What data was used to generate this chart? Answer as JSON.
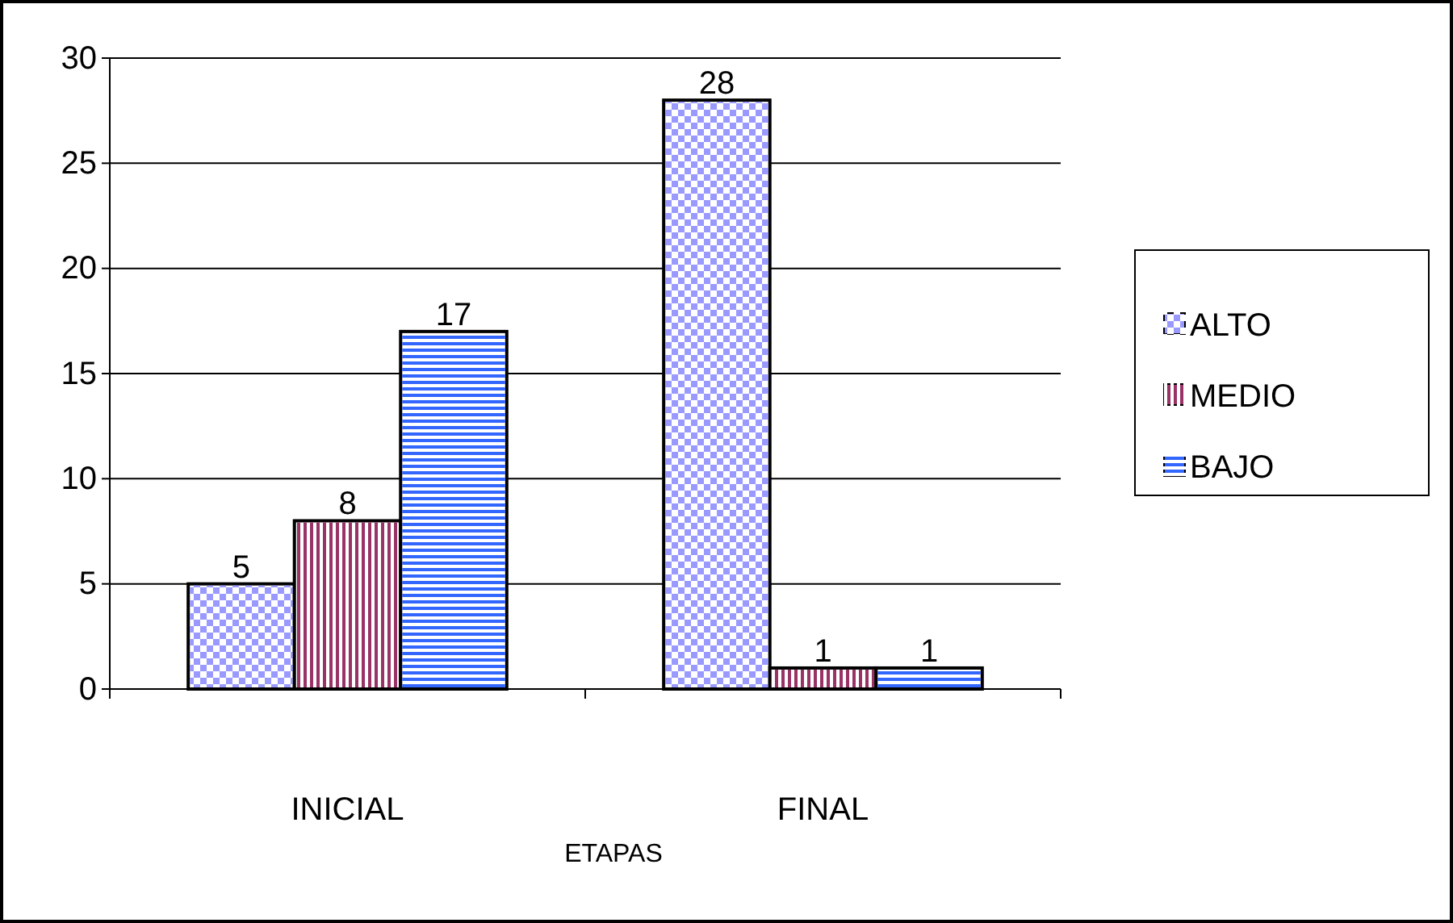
{
  "chart_data": {
    "type": "bar",
    "xlabel": "ETAPAS",
    "categories": [
      "INICIAL",
      "FINAL"
    ],
    "series": [
      {
        "name": "ALTO",
        "color": "#9999ff",
        "values": [
          5,
          28
        ]
      },
      {
        "name": "MEDIO",
        "color": "#993366",
        "values": [
          8,
          1
        ]
      },
      {
        "name": "BAJO",
        "color": "#3366ff",
        "values": [
          17,
          1
        ]
      }
    ],
    "ylim": [
      0,
      30
    ],
    "yticks": [
      0,
      5,
      10,
      15,
      20,
      25,
      30
    ],
    "grid": "y",
    "legend": "right",
    "data_labels": true
  }
}
